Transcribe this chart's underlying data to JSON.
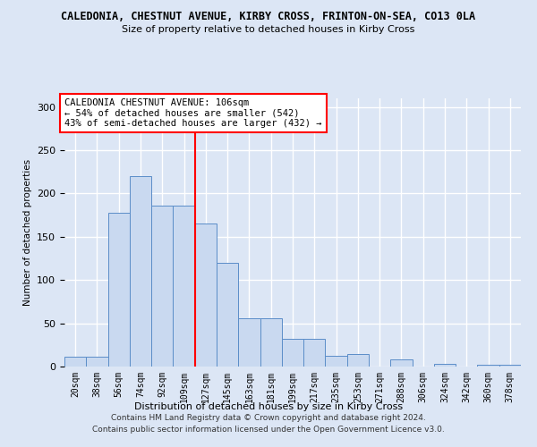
{
  "title": "CALEDONIA, CHESTNUT AVENUE, KIRBY CROSS, FRINTON-ON-SEA, CO13 0LA",
  "subtitle": "Size of property relative to detached houses in Kirby Cross",
  "xlabel": "Distribution of detached houses by size in Kirby Cross",
  "ylabel": "Number of detached properties",
  "categories": [
    "20sqm",
    "38sqm",
    "56sqm",
    "74sqm",
    "92sqm",
    "109sqm",
    "127sqm",
    "145sqm",
    "163sqm",
    "181sqm",
    "199sqm",
    "217sqm",
    "235sqm",
    "253sqm",
    "271sqm",
    "288sqm",
    "306sqm",
    "324sqm",
    "342sqm",
    "360sqm",
    "378sqm"
  ],
  "values": [
    11,
    11,
    178,
    220,
    186,
    186,
    165,
    120,
    56,
    56,
    32,
    32,
    12,
    14,
    0,
    8,
    0,
    3,
    0,
    2,
    2
  ],
  "bar_color": "#c9d9f0",
  "bar_edge_color": "#5b8dc8",
  "vline_x": 5.5,
  "vline_color": "red",
  "annotation_text": "CALEDONIA CHESTNUT AVENUE: 106sqm\n← 54% of detached houses are smaller (542)\n43% of semi-detached houses are larger (432) →",
  "annotation_box_color": "white",
  "annotation_box_edge": "red",
  "footer": "Contains HM Land Registry data © Crown copyright and database right 2024.\nContains public sector information licensed under the Open Government Licence v3.0.",
  "ylim": [
    0,
    310
  ],
  "background_color": "#dce6f5",
  "plot_bg_color": "#dce6f5",
  "grid_color": "#ffffff",
  "yticks": [
    0,
    50,
    100,
    150,
    200,
    250,
    300
  ]
}
